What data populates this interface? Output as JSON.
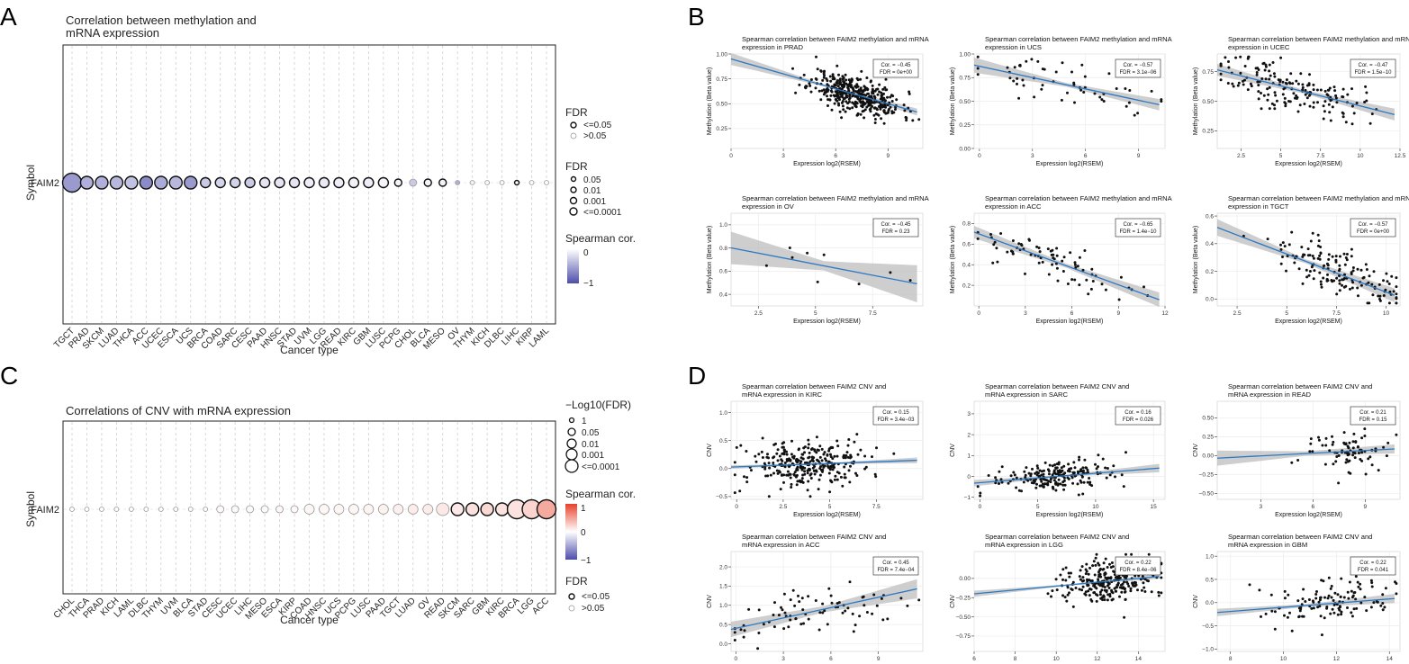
{
  "panels": [
    {
      "letter": "A",
      "title_lines": [
        "Correlation between methylation and",
        "mRNA expression"
      ],
      "ylabel": "Symbol",
      "row_label": "FAIM2",
      "xlabel": "Cancer type",
      "categories": [
        "TGCT",
        "PRAD",
        "SKCM",
        "LUAD",
        "THCA",
        "ACC",
        "UCEC",
        "ESCA",
        "UCS",
        "BRCA",
        "COAD",
        "SARC",
        "CESC",
        "PAAD",
        "HNSC",
        "STAD",
        "UVM",
        "LGG",
        "READ",
        "KIRC",
        "GBM",
        "LUSC",
        "PCPG",
        "CHOL",
        "BLCA",
        "MESO",
        "OV",
        "THYM",
        "KICH",
        "DLBC",
        "LIHC",
        "KIRP",
        "LAML"
      ],
      "cor": [
        -0.57,
        -0.45,
        -0.45,
        -0.4,
        -0.35,
        -0.65,
        -0.47,
        -0.4,
        -0.57,
        -0.3,
        -0.25,
        -0.25,
        -0.3,
        -0.15,
        -0.15,
        -0.15,
        -0.1,
        -0.12,
        -0.1,
        -0.08,
        -0.1,
        -0.06,
        -0.06,
        -0.3,
        -0.06,
        -0.08,
        -0.45,
        -0.08,
        -0.05,
        -0.05,
        -0.03,
        -0.03,
        -0.03
      ],
      "size_level": [
        5,
        4,
        4,
        4,
        4,
        4,
        4,
        4,
        4,
        3,
        3,
        3,
        3,
        3,
        3,
        3,
        3,
        3,
        3,
        3,
        3,
        3,
        2,
        2,
        2,
        2,
        1,
        1,
        1,
        1,
        1,
        1,
        1
      ],
      "sig": [
        true,
        true,
        true,
        true,
        true,
        true,
        true,
        true,
        true,
        true,
        true,
        true,
        true,
        true,
        true,
        true,
        true,
        true,
        true,
        true,
        true,
        true,
        true,
        false,
        true,
        true,
        false,
        false,
        false,
        false,
        true,
        false,
        false
      ],
      "legend": {
        "fdr_title": "FDR",
        "fdr_items": [
          "<=0.05",
          ">0.05"
        ],
        "size_title": "FDR",
        "size_items": [
          "0.05",
          "0.01",
          "0.001",
          "<=0.0001"
        ],
        "color_title": "Spearman cor.",
        "color_ticks": [
          "0",
          "−1"
        ],
        "colors": {
          "neg": "#4d4dab",
          "mid": "#ffffff"
        }
      }
    },
    {
      "letter": "C",
      "title_lines": [
        "Correlations of CNV with mRNA expression"
      ],
      "ylabel": "Symbol",
      "row_label": "FAIM2",
      "xlabel": "Cancer type",
      "categories": [
        "CHOL",
        "THCA",
        "PRAD",
        "KICH",
        "LAML",
        "DLBC",
        "THYM",
        "UVM",
        "BLCA",
        "STAD",
        "CESC",
        "UCEC",
        "LIHC",
        "MESO",
        "ESCA",
        "KIRP",
        "COAD",
        "HNSC",
        "UCS",
        "PCPG",
        "LUSC",
        "PAAD",
        "TGCT",
        "LUAD",
        "OV",
        "READ",
        "SKCM",
        "SARC",
        "GBM",
        "KIRC",
        "BRCA",
        "LGG",
        "ACC"
      ],
      "cor": [
        0.0,
        0.01,
        0.01,
        0.01,
        0.01,
        0.01,
        0.01,
        0.02,
        0.02,
        0.02,
        0.03,
        0.03,
        0.03,
        0.03,
        0.04,
        0.04,
        0.04,
        0.05,
        0.05,
        0.05,
        0.06,
        0.07,
        0.08,
        0.1,
        0.1,
        0.12,
        0.12,
        0.16,
        0.2,
        0.15,
        0.15,
        0.22,
        0.45
      ],
      "size_level": [
        1,
        1,
        1,
        1,
        1,
        1,
        1,
        1,
        1,
        1,
        2,
        2,
        2,
        2,
        2,
        2,
        3,
        3,
        3,
        3,
        3,
        3,
        3,
        3,
        3,
        4,
        4,
        4,
        4,
        4,
        5,
        5,
        5
      ],
      "sig": [
        false,
        false,
        false,
        false,
        false,
        false,
        false,
        false,
        false,
        false,
        false,
        false,
        false,
        false,
        false,
        false,
        false,
        false,
        false,
        false,
        false,
        false,
        false,
        false,
        false,
        false,
        true,
        true,
        true,
        true,
        true,
        true,
        true
      ],
      "legend": {
        "size_title": "−Log10(FDR)",
        "size_items": [
          "1",
          "0.05",
          "0.01",
          "0.001",
          "<=0.0001"
        ],
        "color_title": "Spearman cor.",
        "color_ticks": [
          "1",
          "0",
          "−1"
        ],
        "colors": {
          "pos": "#e8412b",
          "mid": "#ffffff",
          "neg": "#4d4dab"
        },
        "fdr_title": "FDR",
        "fdr_items": [
          "<=0.05",
          ">0.05"
        ]
      }
    }
  ],
  "scatter_B": {
    "letter": "B",
    "plots": [
      {
        "title_lines": [
          "Spearman correlation between FAIM2 methylation and mRNA",
          "expression in PRAD"
        ],
        "cor_text": "Cor. = −0.45",
        "fdr_text": "FDR = 0e+00",
        "xlabel": "Expression log2(RSEM)",
        "ylabel": "Methylation (Beta value)",
        "xlim": [
          0,
          11
        ],
        "ylim": [
          0.05,
          1.0
        ],
        "xticks": [
          0,
          3,
          6,
          9
        ],
        "yticks": [
          0.25,
          0.5,
          0.75,
          1.0
        ],
        "ytick_labels": [
          "0.25",
          "0.50",
          "0.75",
          "1.00"
        ],
        "fit": [
          0.95,
          -0.05
        ],
        "band": [
          0.06,
          0.01,
          0.035
        ],
        "n": 420,
        "cx": 7.2,
        "sx": 1.3,
        "noise": 0.13,
        "seed": 11
      },
      {
        "title_lines": [
          "Spearman correlation between FAIM2 methylation and mRNA",
          "expression in UCS"
        ],
        "cor_text": "Cor. = −0.57",
        "fdr_text": "FDR = 3.1e−06",
        "xlabel": "Expression log2(RSEM)",
        "ylabel": "Methylation (Beta value)",
        "xlim": [
          -0.3,
          10.5
        ],
        "ylim": [
          0.0,
          1.0
        ],
        "xticks": [
          0,
          3,
          6,
          9
        ],
        "yticks": [
          0,
          0.25,
          0.5,
          0.75,
          1.0
        ],
        "ytick_labels": [
          "0.00",
          "0.25",
          "0.50",
          "0.75",
          "1.00"
        ],
        "fit": [
          0.87,
          -0.04
        ],
        "band": [
          0.08,
          0.02,
          0.06
        ],
        "n": 56,
        "cx": 5.0,
        "sx": 2.6,
        "noise": 0.14,
        "seed": 23
      },
      {
        "title_lines": [
          "Spearman correlation between FAIM2 methylation and mRNA",
          "expression in UCEC"
        ],
        "cor_text": "Cor. = −0.47",
        "fdr_text": "FDR = 1.5e−10",
        "xlabel": "Expression log2(RSEM)",
        "ylabel": "Methylation (Beta value)",
        "xlim": [
          1.0,
          12.5
        ],
        "ylim": [
          0.1,
          0.9
        ],
        "xticks": [
          2.5,
          5,
          7.5,
          10,
          12.5
        ],
        "yticks": [
          0.25,
          0.5,
          0.75
        ],
        "ytick_labels": [
          "0.25",
          "0.50",
          "0.75"
        ],
        "fit": [
          0.8,
          -0.034
        ],
        "band": [
          0.05,
          0.015,
          0.05
        ],
        "n": 170,
        "cx": 5.5,
        "sx": 2.3,
        "noise": 0.14,
        "seed": 37
      },
      {
        "title_lines": [
          "Spearman correlation between FAIM2 methylation and mRNA",
          "expression in OV"
        ],
        "cor_text": "Cor. = −0.45",
        "fdr_text": "FDR = 0.23",
        "xlabel": "Expression log2(RSEM)",
        "ylabel": "Methylation (Beta value)",
        "xlim": [
          1.3,
          9.7
        ],
        "ylim": [
          0.3,
          1.1
        ],
        "xticks": [
          2.5,
          5,
          7.5
        ],
        "yticks": [
          0.4,
          0.6,
          0.8,
          1.0
        ],
        "ytick_labels": [
          "0.4",
          "0.6",
          "0.8",
          "1.0"
        ],
        "fit": [
          0.85,
          -0.038
        ],
        "band": [
          0.14,
          0.04,
          0.16
        ],
        "n": 9,
        "cx": 5.0,
        "sx": 2.5,
        "noise": 0.14,
        "seed": 41
      },
      {
        "title_lines": [
          "Spearman correlation between FAIM2 methylation and mRNA",
          "expression in ACC"
        ],
        "cor_text": "Cor. = −0.65",
        "fdr_text": "FDR = 1.4e−10",
        "xlabel": "Expression log2(RSEM)",
        "ylabel": "Methylation (Beta value)",
        "xlim": [
          -0.3,
          12
        ],
        "ylim": [
          0.0,
          0.9
        ],
        "xticks": [
          0,
          3,
          6,
          9,
          12
        ],
        "yticks": [
          0.2,
          0.4,
          0.6,
          0.8
        ],
        "ytick_labels": [
          "0.2",
          "0.4",
          "0.6",
          "0.8"
        ],
        "fit": [
          0.7,
          -0.055
        ],
        "band": [
          0.06,
          0.02,
          0.07
        ],
        "n": 78,
        "cx": 4.8,
        "sx": 3.0,
        "noise": 0.14,
        "seed": 53
      },
      {
        "title_lines": [
          "Spearman correlation between FAIM2 methylation and mRNA",
          "expression in TGCT"
        ],
        "cor_text": "Cor. = −0.57",
        "fdr_text": "FDR = 0e+00",
        "xlabel": "Expression log2(RSEM)",
        "ylabel": "Methylation (Beta value)",
        "xlim": [
          1.5,
          10.7
        ],
        "ylim": [
          -0.05,
          0.62
        ],
        "xticks": [
          2.5,
          5,
          7.5,
          10
        ],
        "yticks": [
          0,
          0.2,
          0.4,
          0.6
        ],
        "ytick_labels": [
          "0.0",
          "0.2",
          "0.4",
          "0.6"
        ],
        "fit": [
          0.6,
          -0.055
        ],
        "band": [
          0.06,
          0.015,
          0.05
        ],
        "n": 150,
        "cx": 7.5,
        "sx": 1.6,
        "noise": 0.12,
        "seed": 67
      }
    ]
  },
  "scatter_D": {
    "letter": "D",
    "plots": [
      {
        "title_lines": [
          "Spearman correlation between FAIM2 CNV and",
          "mRNA expression in KIRC"
        ],
        "cor_text": "Cor. = 0.15",
        "fdr_text": "FDR = 3.4e−03",
        "xlabel": "Expression log2(RSEM)",
        "ylabel": "CNV",
        "xlim": [
          -0.3,
          10
        ],
        "ylim": [
          -0.55,
          1.2
        ],
        "xticks": [
          0,
          2.5,
          5,
          7.5
        ],
        "yticks": [
          -0.5,
          0,
          0.5,
          1.0
        ],
        "ytick_labels": [
          "−0.5",
          "0.0",
          "0.5",
          "1.0"
        ],
        "fit": [
          0.03,
          0.012
        ],
        "band": [
          0.03,
          0.01,
          0.05
        ],
        "n": 300,
        "cx": 3.8,
        "sx": 1.7,
        "noise": 0.3,
        "seed": 71
      },
      {
        "title_lines": [
          "Spearman correlation between FAIM2 CNV and",
          "mRNA expression in SARC"
        ],
        "cor_text": "Cor. = 0.16",
        "fdr_text": "FDR = 0.026",
        "xlabel": "Expression log2(RSEM)",
        "ylabel": "CNV",
        "xlim": [
          -0.5,
          16
        ],
        "ylim": [
          -1.1,
          3.6
        ],
        "xticks": [
          0,
          5,
          10,
          15
        ],
        "yticks": [
          -1,
          0,
          1,
          2,
          3
        ],
        "ytick_labels": [
          "−1",
          "0",
          "1",
          "2",
          "3"
        ],
        "fit": [
          -0.3,
          0.045
        ],
        "band": [
          0.15,
          0.05,
          0.2
        ],
        "n": 200,
        "cx": 6.5,
        "sx": 2.5,
        "noise": 0.5,
        "seed": 83
      },
      {
        "title_lines": [
          "Spearman correlation between FAIM2 CNV and",
          "mRNA expression in READ"
        ],
        "cor_text": "Cor. = 0.21",
        "fdr_text": "FDR = 0.15",
        "xlabel": "Expression log2(RSEM)",
        "ylabel": "CNV",
        "xlim": [
          0.5,
          11
        ],
        "ylim": [
          -0.58,
          0.72
        ],
        "xticks": [
          3,
          6,
          9
        ],
        "yticks": [
          -0.5,
          -0.25,
          0,
          0.25,
          0.5
        ],
        "ytick_labels": [
          "−0.50",
          "−0.25",
          "0.00",
          "0.25",
          "0.50"
        ],
        "fit": [
          -0.04,
          0.012
        ],
        "band": [
          0.1,
          0.03,
          0.06
        ],
        "n": 80,
        "cx": 7.6,
        "sx": 1.4,
        "noise": 0.2,
        "seed": 97
      },
      {
        "title_lines": [
          "Spearman correlation between FAIM2 CNV and",
          "mRNA expression in ACC"
        ],
        "cor_text": "Cor. = 0.45",
        "fdr_text": "FDR = 7.4e−04",
        "xlabel": "Expression log2(RSEM)",
        "ylabel": "CNV",
        "xlim": [
          -0.3,
          11.8
        ],
        "ylim": [
          -0.2,
          2.4
        ],
        "xticks": [
          0,
          3,
          6,
          9
        ],
        "yticks": [
          0,
          0.5,
          1.0,
          1.5,
          2.0
        ],
        "ytick_labels": [
          "0.0",
          "0.5",
          "1.0",
          "1.5",
          "2.0"
        ],
        "fit": [
          0.4,
          0.09
        ],
        "band": [
          0.2,
          0.08,
          0.25
        ],
        "n": 78,
        "cx": 4.8,
        "sx": 3.0,
        "noise": 0.45,
        "seed": 101
      },
      {
        "title_lines": [
          "Spearman correlation between FAIM2 CNV and",
          "mRNA expression in LGG"
        ],
        "cor_text": "Cor. = 0.22",
        "fdr_text": "FDR = 8.4e−06",
        "xlabel": "Expression log2(RSEM)",
        "ylabel": "CNV",
        "xlim": [
          6,
          15.3
        ],
        "ylim": [
          -0.95,
          0.35
        ],
        "xticks": [
          6,
          8,
          10,
          12,
          14
        ],
        "yticks": [
          -0.75,
          -0.5,
          -0.25,
          0
        ],
        "ytick_labels": [
          "−0.75",
          "−0.50",
          "−0.25",
          "0.00"
        ],
        "fit": [
          -0.35,
          0.025
        ],
        "band": [
          0.04,
          0.008,
          0.03
        ],
        "n": 260,
        "cx": 12.6,
        "sx": 1.2,
        "noise": 0.2,
        "seed": 113
      },
      {
        "title_lines": [
          "Spearman correlation between FAIM2 CNV and",
          "mRNA expression in GBM"
        ],
        "cor_text": "Cor. = 0.22",
        "fdr_text": "FDR = 0.041",
        "xlabel": "Expression log2(RSEM)",
        "ylabel": "CNV",
        "xlim": [
          7.5,
          14.4
        ],
        "ylim": [
          -1.05,
          1.1
        ],
        "xticks": [
          8,
          10,
          12,
          14
        ],
        "yticks": [
          -1,
          -0.5,
          0,
          0.5,
          1.0
        ],
        "ytick_labels": [
          "−1.0",
          "−0.5",
          "0.0",
          "0.5",
          "1.0"
        ],
        "fit": [
          -0.55,
          0.045
        ],
        "band": [
          0.08,
          0.03,
          0.1
        ],
        "n": 120,
        "cx": 11.8,
        "sx": 1.3,
        "noise": 0.35,
        "seed": 127
      }
    ]
  }
}
